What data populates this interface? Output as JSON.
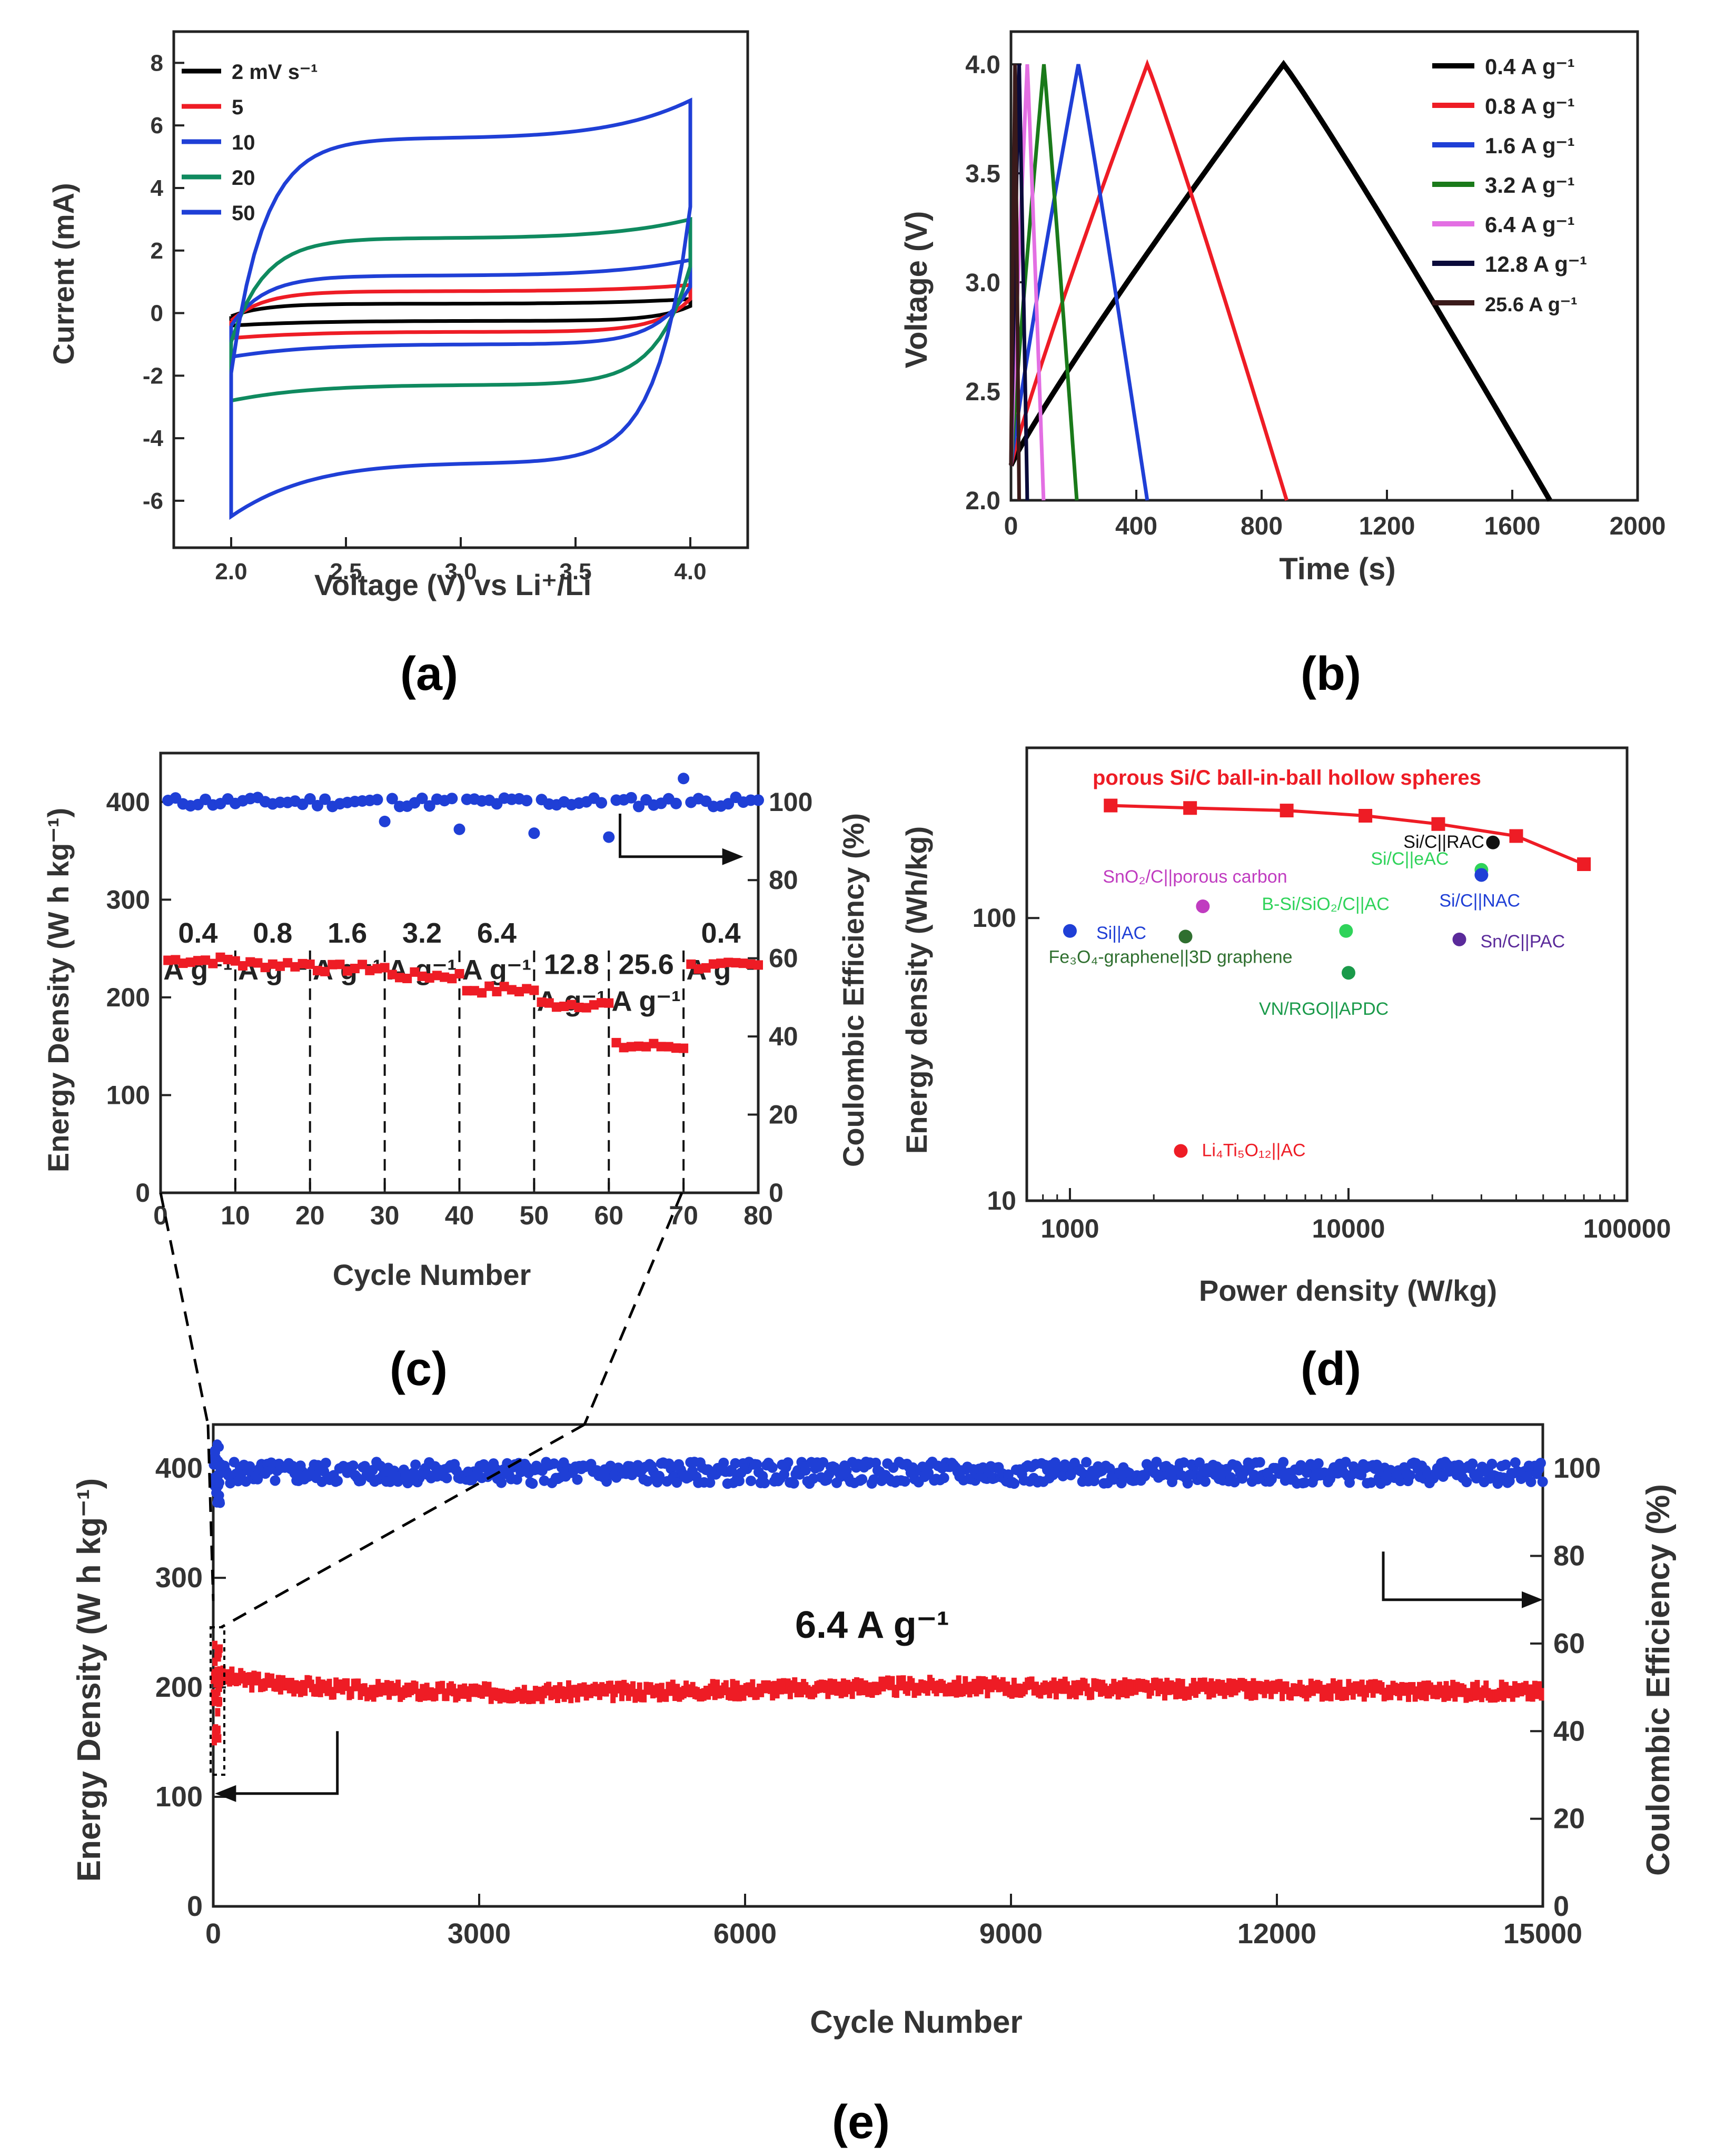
{
  "figure": {
    "panel_labels": [
      "(a)",
      "(b)",
      "(c)",
      "(d)",
      "(e)"
    ]
  },
  "chart_data": [
    {
      "id": "a",
      "type": "line",
      "title": "",
      "xlabel": "Voltage (V) vs Li⁺/Li",
      "ylabel": "Current (mA)",
      "xlim": [
        1.75,
        4.25
      ],
      "ylim": [
        -7.5,
        9
      ],
      "xticks": [
        "2.0",
        "2.5",
        "3.0",
        "3.5",
        "4.0"
      ],
      "yticks": [
        "-6",
        "-4",
        "-2",
        "0",
        "2",
        "4",
        "6",
        "8"
      ],
      "legend_position": "top-left",
      "series": [
        {
          "name": "2 mV s⁻¹",
          "color": "#000000",
          "vmin": 2.0,
          "vmax": 4.0,
          "upper": 0.3,
          "lower": -0.25,
          "end_up": 0.45,
          "start_low": -0.4
        },
        {
          "name": "5",
          "color": "#ee1c25",
          "vmin": 2.0,
          "vmax": 4.0,
          "upper": 0.7,
          "lower": -0.6,
          "end_up": 0.9,
          "start_low": -0.8
        },
        {
          "name": "10",
          "color": "#1f3fd6",
          "vmin": 2.0,
          "vmax": 4.0,
          "upper": 1.2,
          "lower": -1.0,
          "end_up": 1.7,
          "start_low": -1.4
        },
        {
          "name": "20",
          "color": "#0f8a5f",
          "vmin": 2.0,
          "vmax": 4.0,
          "upper": 2.4,
          "lower": -2.3,
          "end_up": 3.0,
          "start_low": -2.8
        },
        {
          "name": "50",
          "color": "#1f3fd6",
          "vmin": 2.0,
          "vmax": 4.0,
          "upper": 5.6,
          "lower": -4.8,
          "end_up": 6.8,
          "start_low": -6.5
        }
      ]
    },
    {
      "id": "b",
      "type": "line",
      "title": "",
      "xlabel": "Time (s)",
      "ylabel": "Voltage (V)",
      "xlim": [
        0,
        2000
      ],
      "ylim": [
        2.0,
        4.15
      ],
      "xticks": [
        "0",
        "400",
        "800",
        "1200",
        "1600",
        "2000"
      ],
      "yticks": [
        "2.0",
        "2.5",
        "3.0",
        "3.5",
        "4.0"
      ],
      "legend_position": "top-right",
      "series": [
        {
          "name": "0.4 A g⁻¹",
          "color": "#000000",
          "charge_end": 870,
          "discharge_end": 1720
        },
        {
          "name": "0.8 A g⁻¹",
          "color": "#ee1c25",
          "charge_end": 435,
          "discharge_end": 880
        },
        {
          "name": "1.6 A g⁻¹",
          "color": "#1f3fd6",
          "charge_end": 215,
          "discharge_end": 435
        },
        {
          "name": "3.2 A g⁻¹",
          "color": "#1a7a1a",
          "charge_end": 105,
          "discharge_end": 210
        },
        {
          "name": "6.4 A g⁻¹",
          "color": "#e36fe3",
          "charge_end": 52,
          "discharge_end": 104
        },
        {
          "name": "12.8 A g⁻¹",
          "color": "#0a0a3a",
          "charge_end": 26,
          "discharge_end": 52
        },
        {
          "name": "25.6 A g⁻¹",
          "color": "#3a1a1a",
          "charge_end": 13,
          "discharge_end": 26
        }
      ]
    },
    {
      "id": "c",
      "type": "scatter",
      "title": "",
      "xlabel": "Cycle Number",
      "ylabel": "Energy Density (W h kg⁻¹)",
      "ylabel_right": "Coulombic Efficiency (%)",
      "xlim": [
        0,
        80
      ],
      "ylim": [
        0,
        450
      ],
      "ylim_right": [
        0,
        112.5
      ],
      "xticks": [
        "0",
        "10",
        "20",
        "30",
        "40",
        "50",
        "60",
        "70",
        "80"
      ],
      "yticks": [
        "0",
        "100",
        "200",
        "300",
        "400"
      ],
      "yticks_right": [
        "0",
        "20",
        "40",
        "60",
        "80",
        "100"
      ],
      "segments": [
        {
          "x0": 0,
          "x1": 10,
          "energy": 238,
          "label_a": "0.4",
          "label_b": "A g⁻¹"
        },
        {
          "x0": 10,
          "x1": 20,
          "energy": 234,
          "label_a": "0.8",
          "label_b": "A g⁻¹"
        },
        {
          "x0": 20,
          "x1": 30,
          "energy": 230,
          "label_a": "1.6",
          "label_b": "A g⁻¹"
        },
        {
          "x0": 30,
          "x1": 40,
          "energy": 222,
          "label_a": "3.2",
          "label_b": "A g⁻¹"
        },
        {
          "x0": 40,
          "x1": 50,
          "energy": 208,
          "label_a": "6.4",
          "label_b": "A g⁻¹"
        },
        {
          "x0": 50,
          "x1": 60,
          "energy": 193,
          "label_a": "12.8",
          "label_b": "A g⁻¹"
        },
        {
          "x0": 60,
          "x1": 70,
          "energy": 150,
          "label_a": "25.6",
          "label_b": "A g⁻¹"
        },
        {
          "x0": 70,
          "x1": 80,
          "energy": 232,
          "label_a": "0.4",
          "label_b": "A g⁻¹"
        }
      ],
      "ce_mean": 100,
      "ce_outliers": [
        [
          30,
          95
        ],
        [
          40,
          93
        ],
        [
          50,
          92
        ],
        [
          60,
          91
        ],
        [
          70,
          106
        ]
      ],
      "series_colors": {
        "energy": "#ee1c25",
        "ce": "#1f3fd6"
      }
    },
    {
      "id": "d",
      "type": "scatter",
      "title": "",
      "xlabel": "Power density (W/kg)",
      "ylabel": "Energy density (Wh/kg)",
      "xscale": "log",
      "yscale": "log",
      "xlim": [
        700,
        100000
      ],
      "ylim": [
        10,
        400
      ],
      "xticks": [
        "1000",
        "10000",
        "100000"
      ],
      "yticks": [
        "10",
        "100"
      ],
      "series": [
        {
          "name": "porous Si/C ball-in-ball hollow spheres",
          "color": "#ee1c25",
          "x": [
            1400,
            2700,
            6000,
            11500,
            21000,
            40000,
            70000
          ],
          "y": [
            250,
            245,
            240,
            230,
            215,
            195,
            155
          ]
        }
      ],
      "points": [
        {
          "name": "Si/C||RAC",
          "x": 33000,
          "y": 185,
          "color": "#111111"
        },
        {
          "name": "SnO₂/C||porous carbon",
          "x": 3000,
          "y": 110,
          "color": "#c03cc0"
        },
        {
          "name": "Si/C||eAC",
          "x": 30000,
          "y": 148,
          "color": "#2fd35a"
        },
        {
          "name": "Si/C||NAC",
          "x": 30000,
          "y": 142,
          "color": "#1f3fd6"
        },
        {
          "name": "Si||AC",
          "x": 1000,
          "y": 90,
          "color": "#1f3fd6"
        },
        {
          "name": "B-Si/SiO₂/C||AC",
          "x": 9800,
          "y": 90,
          "color": "#2fd35a"
        },
        {
          "name": "Fe₃O₄-graphene||3D graphene",
          "x": 2600,
          "y": 86,
          "color": "#2f6f2f"
        },
        {
          "name": "Sn/C||PAC",
          "x": 25000,
          "y": 84,
          "color": "#5a2a9a"
        },
        {
          "name": "VN/RGO||APDC",
          "x": 10000,
          "y": 64,
          "color": "#1a9a4a"
        },
        {
          "name": "Li₄Ti₅O₁₂||AC",
          "x": 2500,
          "y": 15,
          "color": "#ee1c25"
        }
      ]
    },
    {
      "id": "e",
      "type": "scatter",
      "title": "6.4 A g⁻¹",
      "xlabel": "Cycle Number",
      "ylabel": "Energy Density (W h kg⁻¹)",
      "ylabel_right": "Coulombic Efficiency (%)",
      "xlim": [
        0,
        15000
      ],
      "ylim": [
        0,
        440
      ],
      "ylim_right": [
        0,
        110
      ],
      "xticks": [
        "0",
        "3000",
        "6000",
        "9000",
        "12000",
        "15000"
      ],
      "yticks": [
        "0",
        "100",
        "200",
        "300",
        "400"
      ],
      "yticks_right": [
        "0",
        "20",
        "40",
        "60",
        "80",
        "100"
      ],
      "energy_profile": {
        "x": [
          0,
          100,
          500,
          1500,
          3000,
          4500,
          6000,
          8000,
          10000,
          12000,
          15000
        ],
        "y": [
          205,
          210,
          205,
          198,
          195,
          196,
          198,
          201,
          199,
          198,
          196
        ]
      },
      "ce_mean": 99,
      "series_colors": {
        "energy": "#ee1c25",
        "ce": "#1f3fd6"
      }
    }
  ]
}
